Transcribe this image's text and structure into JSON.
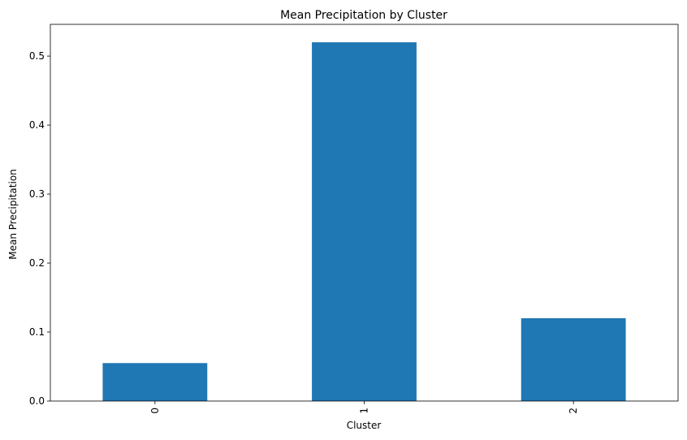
{
  "chart_data": {
    "type": "bar",
    "title": "Mean Precipitation by Cluster",
    "xlabel": "Cluster",
    "ylabel": "Mean Precipitation",
    "categories": [
      "0",
      "1",
      "2"
    ],
    "values": [
      0.055,
      0.52,
      0.12
    ],
    "ylim": [
      0,
      0.546
    ],
    "yticks": [
      0.0,
      0.1,
      0.2,
      0.3,
      0.4,
      0.5
    ],
    "ytick_labels": [
      "0.0",
      "0.1",
      "0.2",
      "0.3",
      "0.4",
      "0.5"
    ],
    "x_tick_rotation": 90,
    "grid": false,
    "bar_color": "#1f77b4"
  }
}
